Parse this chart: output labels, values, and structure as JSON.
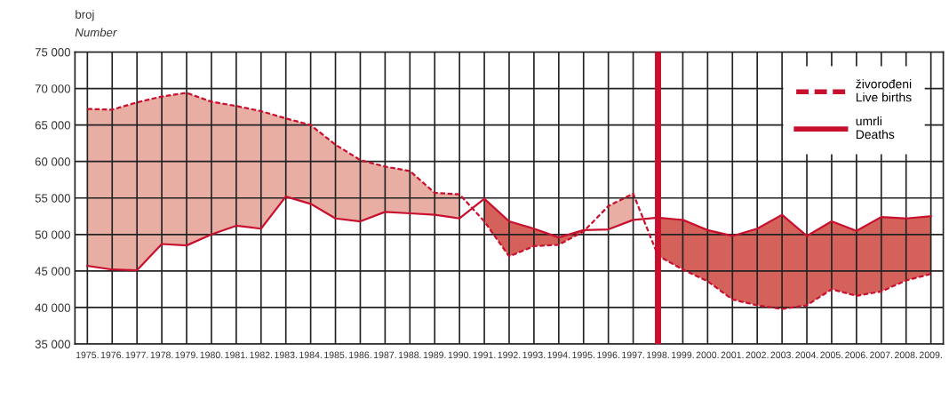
{
  "chart_data": {
    "type": "line",
    "ylabel": "broj\nNumber",
    "x": [
      1975,
      1976,
      1977,
      1978,
      1979,
      1980,
      1981,
      1982,
      1983,
      1984,
      1985,
      1986,
      1987,
      1988,
      1989,
      1990,
      1991,
      1992,
      1993,
      1994,
      1995,
      1996,
      1997,
      1998,
      1999,
      2000,
      2001,
      2002,
      2003,
      2004,
      2005,
      2006,
      2007,
      2008,
      2009
    ],
    "series": [
      {
        "name": "živorođeni\nLive births",
        "color": "#c8102e",
        "line_style": "dashed",
        "values": [
          67200,
          67100,
          68100,
          68900,
          69400,
          68200,
          67600,
          66900,
          65900,
          65000,
          62300,
          60200,
          59300,
          58700,
          55700,
          55500,
          51800,
          47000,
          48400,
          48600,
          50400,
          53900,
          55600,
          47100,
          45200,
          43600,
          41100,
          40300,
          39800,
          40300,
          42500,
          41600,
          42200,
          43700,
          44600
        ],
        "lower": [
          45700,
          45200,
          45100,
          48700,
          48500,
          50000,
          51200,
          50800,
          55200,
          54200,
          52200,
          51800,
          53100,
          52900,
          52700,
          52200,
          null,
          null,
          null,
          null,
          null,
          50700,
          52000,
          null,
          null,
          null,
          null,
          null,
          null,
          null,
          null,
          null,
          null,
          null,
          null
        ],
        "upper": [
          67200,
          67100,
          68100,
          68900,
          69400,
          68200,
          67600,
          66900,
          65900,
          65000,
          62300,
          60200,
          59300,
          58700,
          55700,
          55500,
          null,
          null,
          null,
          null,
          null,
          53900,
          55600,
          null,
          null,
          null,
          null,
          null,
          null,
          null,
          null,
          null,
          null,
          null,
          null
        ]
      },
      {
        "name": "umrli\nDeaths",
        "color": "#c8102e",
        "line_style": "solid",
        "values": [
          45700,
          45200,
          45100,
          48700,
          48500,
          50000,
          51200,
          50800,
          55200,
          54200,
          52200,
          51800,
          53100,
          52900,
          52700,
          52200,
          54900,
          51800,
          50800,
          49600,
          50600,
          50700,
          52000,
          52300,
          52000,
          50600,
          49800,
          50800,
          52700,
          49800,
          51800,
          50500,
          52400,
          52200,
          52500
        ],
        "lower": [
          null,
          null,
          null,
          null,
          null,
          null,
          null,
          null,
          null,
          null,
          null,
          null,
          null,
          null,
          null,
          null,
          51800,
          47000,
          48400,
          48600,
          50400,
          null,
          null,
          47100,
          45200,
          43600,
          41100,
          40300,
          39800,
          40300,
          42500,
          41600,
          42200,
          43700,
          44600
        ],
        "upper": [
          null,
          null,
          null,
          null,
          null,
          null,
          null,
          null,
          null,
          null,
          null,
          null,
          null,
          null,
          null,
          null,
          54900,
          51800,
          50800,
          49600,
          50600,
          null,
          null,
          52300,
          52000,
          50600,
          49800,
          50800,
          52700,
          49800,
          51800,
          50500,
          52400,
          52200,
          52500
        ]
      }
    ],
    "xlim": [
      1974.5,
      2009.5
    ],
    "xticks": [
      {
        "value": 1975,
        "label": "1975."
      },
      {
        "value": 1976,
        "label": "1976."
      },
      {
        "value": 1977,
        "label": "1977."
      },
      {
        "value": 1978,
        "label": "1978."
      },
      {
        "value": 1979,
        "label": "1979."
      },
      {
        "value": 1980,
        "label": "1980."
      },
      {
        "value": 1981,
        "label": "1981."
      },
      {
        "value": 1982,
        "label": "1982."
      },
      {
        "value": 1983,
        "label": "1983."
      },
      {
        "value": 1984,
        "label": "1984."
      },
      {
        "value": 1985,
        "label": "1985."
      },
      {
        "value": 1986,
        "label": "1986."
      },
      {
        "value": 1987,
        "label": "1987."
      },
      {
        "value": 1988,
        "label": "1988."
      },
      {
        "value": 1989,
        "label": "1989."
      },
      {
        "value": 1990,
        "label": "1990."
      },
      {
        "value": 1991,
        "label": "1991."
      },
      {
        "value": 1992,
        "label": "1992."
      },
      {
        "value": 1993,
        "label": "1993."
      },
      {
        "value": 1994,
        "label": "1994."
      },
      {
        "value": 1995,
        "label": "1995."
      },
      {
        "value": 1996,
        "label": "1996."
      },
      {
        "value": 1997,
        "label": "1997."
      },
      {
        "value": 1998,
        "label": "1998."
      },
      {
        "value": 1999,
        "label": "1999."
      },
      {
        "value": 2000,
        "label": "2000."
      },
      {
        "value": 2001,
        "label": "2001."
      },
      {
        "value": 2002,
        "label": "2002."
      },
      {
        "value": 2003,
        "label": "2003."
      },
      {
        "value": 2004,
        "label": "2004."
      },
      {
        "value": 2005,
        "label": "2005."
      },
      {
        "value": 2006,
        "label": "2006."
      },
      {
        "value": 2007,
        "label": "2007."
      },
      {
        "value": 2008,
        "label": "2008."
      },
      {
        "value": 2009,
        "label": "2009."
      }
    ],
    "ylim": [
      35000,
      75000
    ],
    "yticks": [
      {
        "value": 35000,
        "label": "35 000"
      },
      {
        "value": 40000,
        "label": "40 000"
      },
      {
        "value": 45000,
        "label": "45 000"
      },
      {
        "value": 50000,
        "label": "50 000"
      },
      {
        "value": 55000,
        "label": "55 000"
      },
      {
        "value": 60000,
        "label": "60 000"
      },
      {
        "value": 65000,
        "label": "65 000"
      },
      {
        "value": 70000,
        "label": "70 000"
      },
      {
        "value": 75000,
        "label": "75 000"
      }
    ],
    "ref_lines": [
      {
        "axis": "x",
        "value": 1998,
        "color": "#c8102e",
        "line_style": "solid"
      }
    ],
    "grid": true,
    "legend": "top right",
    "marker": "none"
  }
}
